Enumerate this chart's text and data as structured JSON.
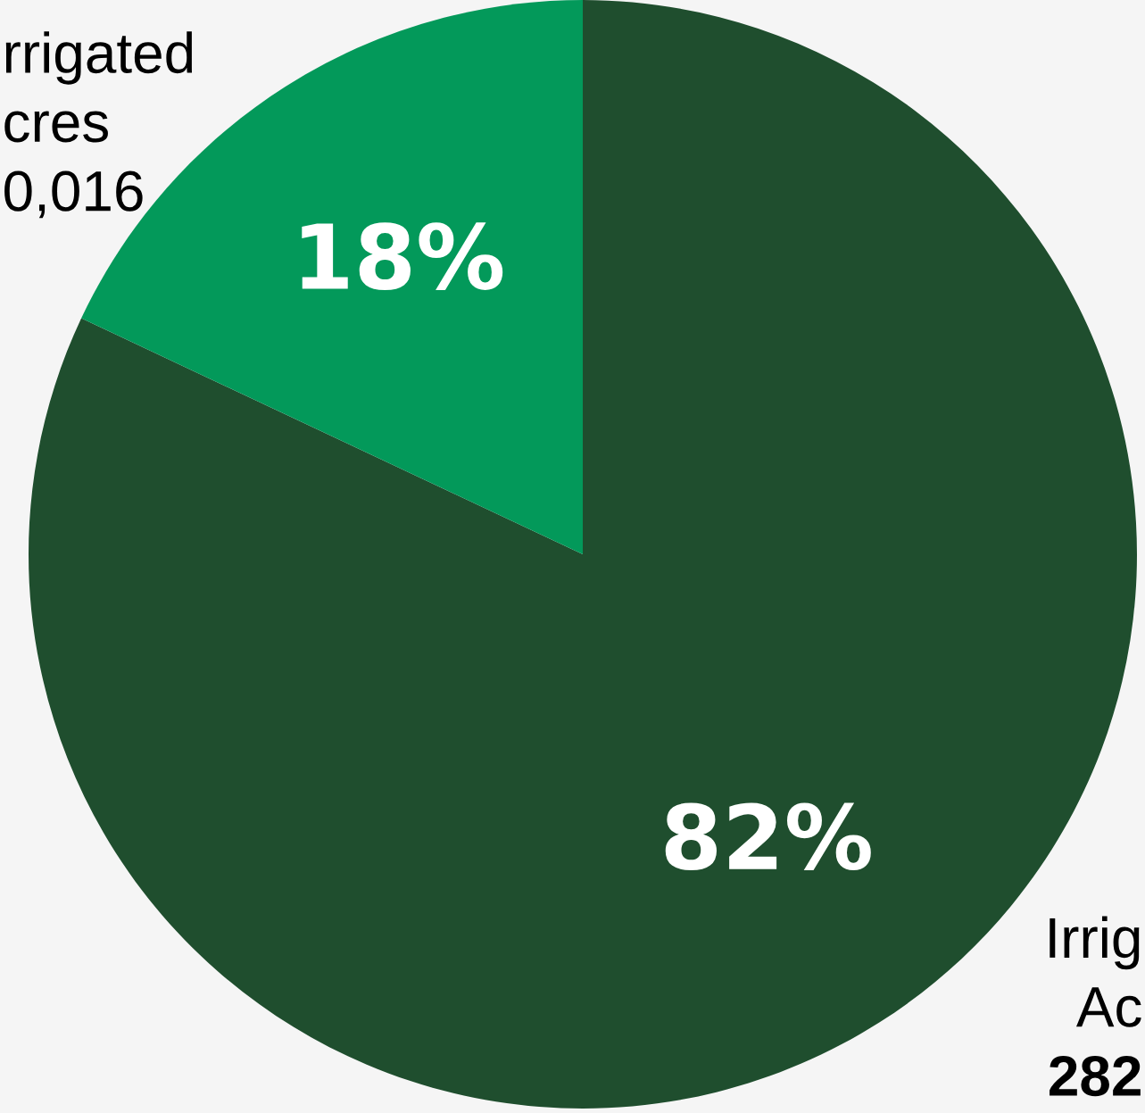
{
  "chart_data": {
    "type": "pie",
    "categories": [
      "Irrig\nAc\n282",
      "rrigated\ncres\n0,016"
    ],
    "values": [
      82,
      18
    ],
    "colors": [
      "#1f4e2e",
      "#03995a"
    ],
    "value_labels": [
      "82%",
      "18%"
    ]
  }
}
